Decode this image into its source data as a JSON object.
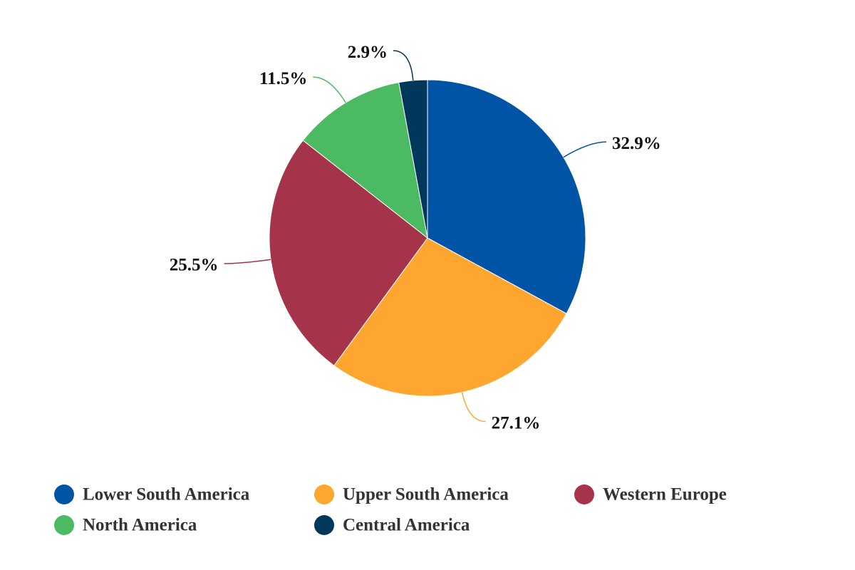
{
  "chart_data": {
    "type": "pie",
    "categories": [
      "Lower South America",
      "Upper South America",
      "Western Europe",
      "North America",
      "Central America"
    ],
    "values": [
      32.9,
      27.1,
      25.5,
      11.5,
      2.9
    ],
    "value_labels": [
      "32.9%",
      "27.1%",
      "25.5%",
      "11.5%",
      "2.9%"
    ],
    "colors": [
      "#0054a6",
      "#ffa630",
      "#a5334a",
      "#4cb963",
      "#00375a"
    ],
    "legend": "bottom"
  }
}
